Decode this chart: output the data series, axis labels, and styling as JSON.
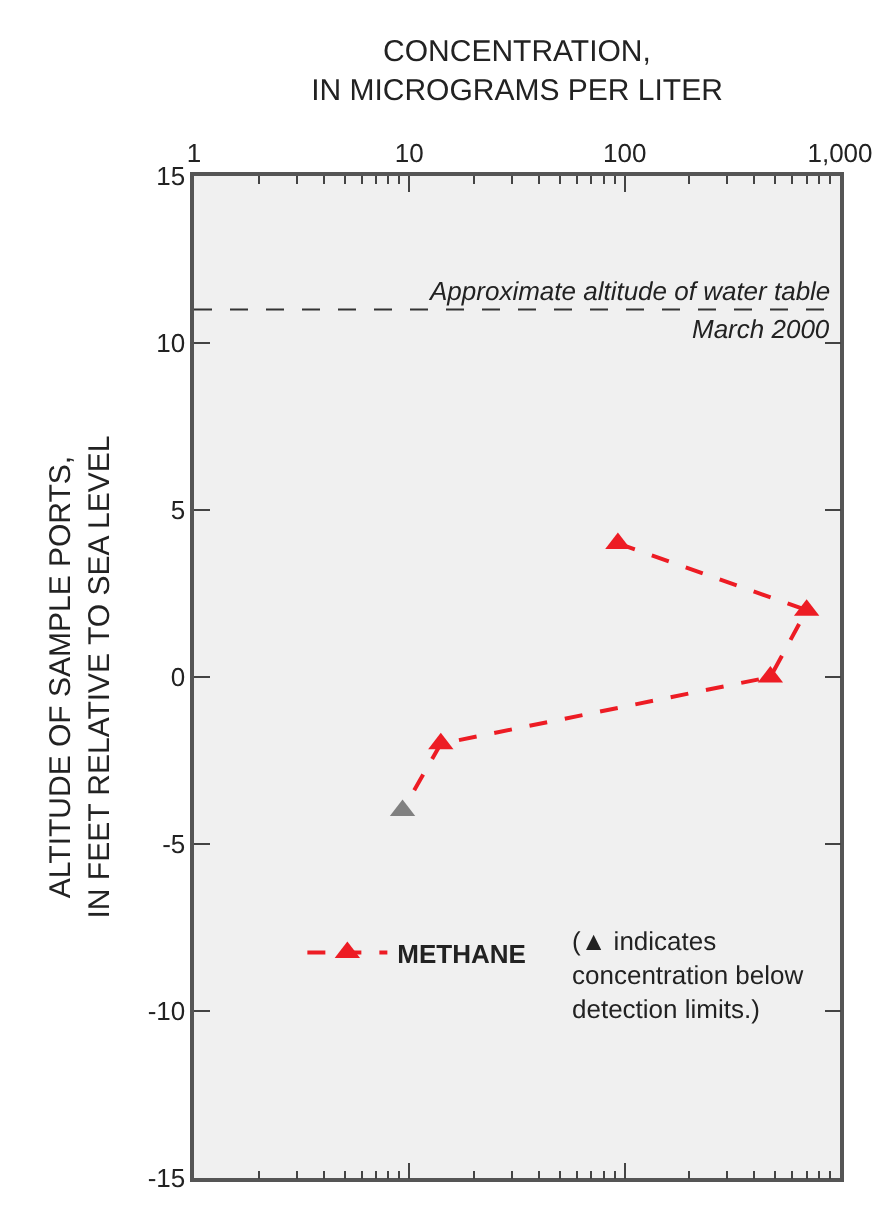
{
  "chart_data": {
    "type": "line",
    "xlabel": "CONCENTRATION,\nIN MICROGRAMS PER LITER",
    "ylabel": "ALTITUDE OF SAMPLE PORTS,\nIN FEET RELATIVE TO SEA LEVEL",
    "series": [
      {
        "name": "METHANE",
        "color": "#ed1c24",
        "colors": [
          "#ed1c24",
          "#ed1c24",
          "#ed1c24",
          "#ed1c24",
          "#808080"
        ],
        "x": [
          93,
          700,
          475,
          14,
          9.3
        ],
        "values": [
          4,
          2,
          0,
          -2,
          -4
        ]
      }
    ],
    "annotations": [
      "(▲ indicates concentration below detection limits.)"
    ],
    "ref_lines": [
      {
        "axis": "y",
        "value": 11,
        "label": "Approximate altitude of water table March 2000",
        "color": "#333333",
        "line_style": "dashed"
      }
    ],
    "log": "x",
    "xlim": [
      1,
      1000
    ],
    "xticks": [
      1,
      10,
      100,
      {
        "value": 1000,
        "label": "1,000"
      }
    ],
    "ylim": [
      -15,
      15
    ],
    "yticks": [
      -15,
      -10,
      -5,
      0,
      5,
      10,
      15
    ],
    "marker": "triangle",
    "line_style": "dashed",
    "grid": false,
    "legend": "bottom left"
  }
}
